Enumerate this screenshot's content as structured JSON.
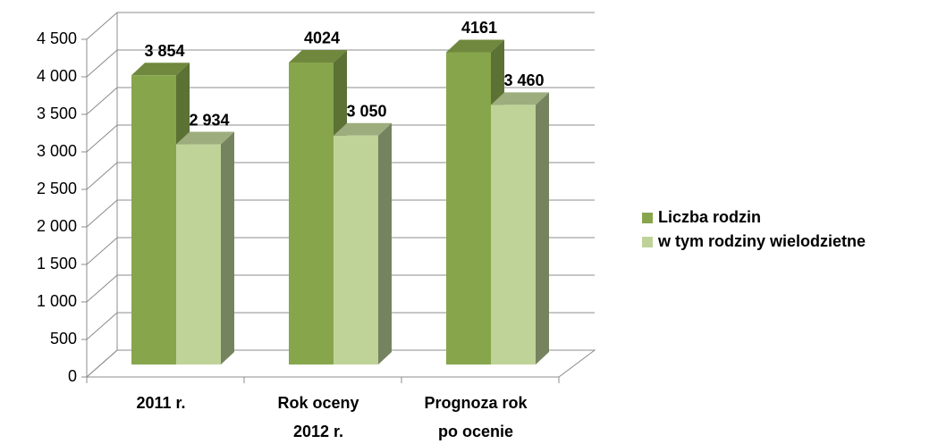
{
  "chart_data": {
    "type": "bar3d",
    "categories": [
      "2011 r.",
      "Rok oceny\n2012 r.",
      "Prognoza rok\npo ocenie"
    ],
    "series": [
      {
        "name": "Liczba rodzin",
        "color": "#87a64c",
        "values": [
          3854,
          4024,
          4161
        ],
        "value_labels": [
          "3 854",
          "4024",
          "4161"
        ]
      },
      {
        "name": "w tym rodziny wielodzietne",
        "color": "#bfd399",
        "values": [
          2934,
          3050,
          3460
        ],
        "value_labels": [
          "2 934",
          "3 050",
          "3 460"
        ]
      }
    ],
    "ylim": [
      0,
      4500
    ],
    "yticks": [
      0,
      500,
      {
        "value": 1000,
        "label": "1 000"
      },
      {
        "value": 1500,
        "label": "1 500"
      },
      {
        "value": 2000,
        "label": "2 000"
      },
      {
        "value": 2500,
        "label": "2 500"
      },
      {
        "value": 3000,
        "label": "3 000"
      },
      {
        "value": 3500,
        "label": "3 500"
      },
      {
        "value": 4000,
        "label": "4 000"
      },
      {
        "value": 4500,
        "label": "4 500"
      }
    ],
    "grid": true,
    "legend": "right"
  }
}
